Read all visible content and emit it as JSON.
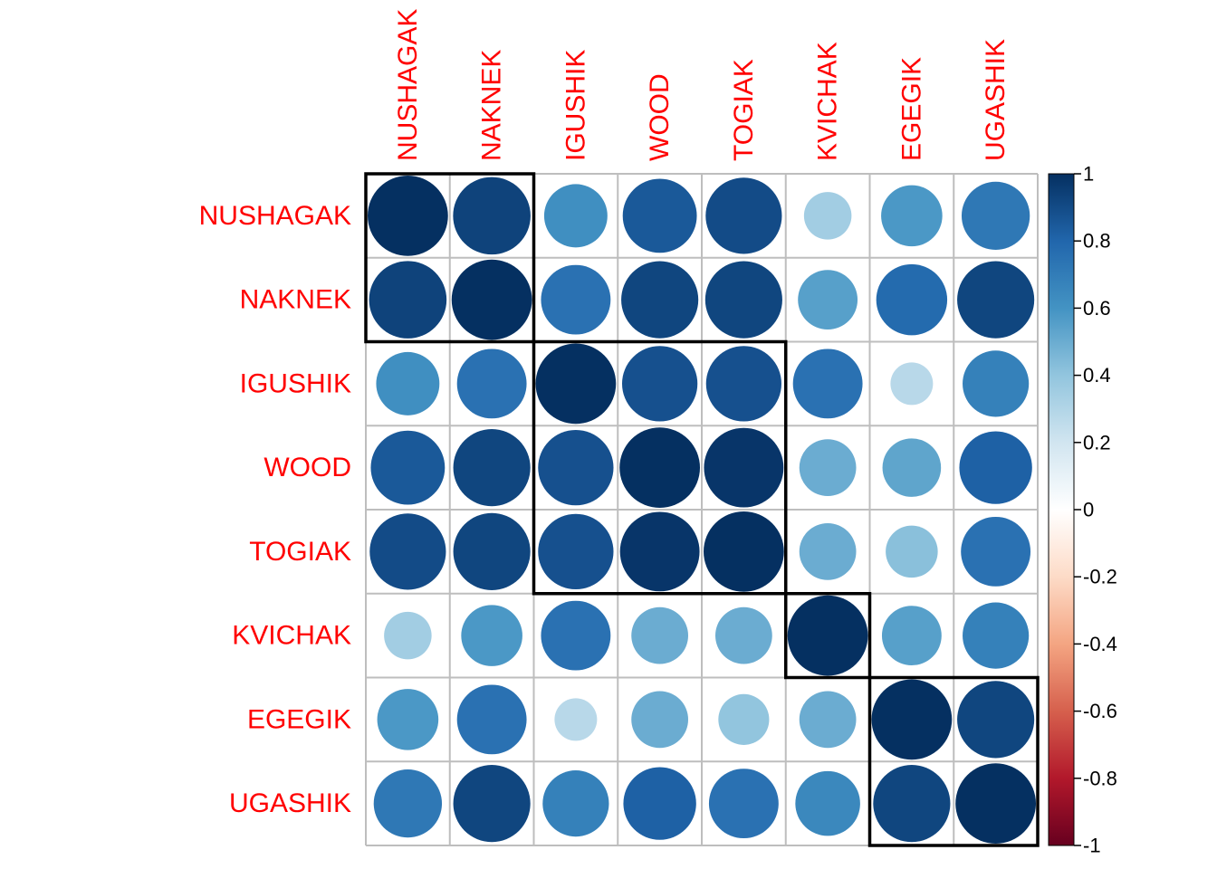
{
  "chart_data": {
    "type": "heatmap",
    "variables": [
      "NUSHAGAK",
      "NAKNEK",
      "IGUSHIK",
      "WOOD",
      "TOGIAK",
      "KVICHAK",
      "EGEGIK",
      "UGASHIK"
    ],
    "matrix": [
      [
        1.0,
        0.93,
        0.62,
        0.85,
        0.9,
        0.35,
        0.58,
        0.72
      ],
      [
        0.93,
        1.0,
        0.75,
        0.92,
        0.92,
        0.55,
        0.78,
        0.92
      ],
      [
        0.62,
        0.75,
        1.0,
        0.88,
        0.88,
        0.75,
        0.28,
        0.68
      ],
      [
        0.85,
        0.92,
        0.88,
        1.0,
        0.98,
        0.5,
        0.53,
        0.82
      ],
      [
        0.9,
        0.92,
        0.88,
        0.98,
        1.0,
        0.5,
        0.42,
        0.75
      ],
      [
        0.35,
        0.58,
        0.75,
        0.5,
        0.5,
        1.0,
        0.55,
        0.68
      ],
      [
        0.58,
        0.75,
        0.28,
        0.5,
        0.4,
        0.5,
        1.0,
        0.92
      ],
      [
        0.72,
        0.92,
        0.68,
        0.82,
        0.75,
        0.65,
        0.92,
        1.0
      ]
    ],
    "clusters": [
      [
        0,
        1
      ],
      [
        2,
        4
      ],
      [
        5,
        5
      ],
      [
        6,
        7
      ]
    ],
    "colorbar": {
      "range": [
        -1,
        1
      ],
      "ticks": [
        "1",
        "0.8",
        "0.6",
        "0.4",
        "0.2",
        "0",
        "-0.2",
        "-0.4",
        "-0.6",
        "-0.8",
        "-1"
      ]
    },
    "label_color": "#ff0000",
    "grid": true,
    "legend_placement": "right"
  }
}
